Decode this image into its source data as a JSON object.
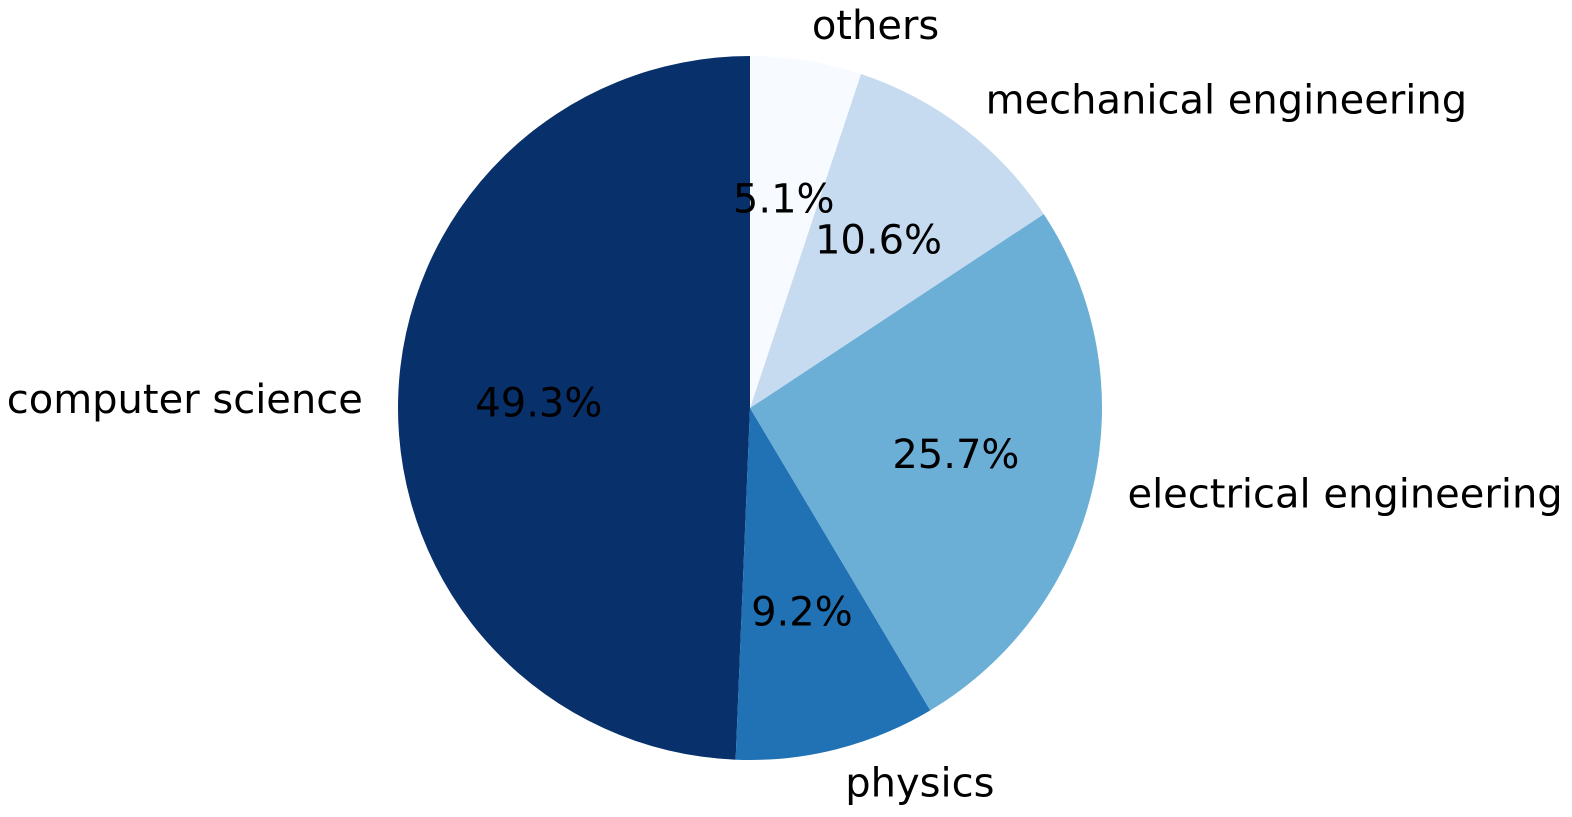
{
  "chart_data": {
    "type": "pie",
    "title": "",
    "start_angle_deg": 90,
    "direction": "counterclockwise",
    "slices": [
      {
        "label": "computer science",
        "pct_label": "49.3%",
        "value": 49.3,
        "color": "#08306b"
      },
      {
        "label": "physics",
        "pct_label": "9.2%",
        "value": 9.2,
        "color": "#2171b5"
      },
      {
        "label": "electrical engineering",
        "pct_label": "25.7%",
        "value": 25.7,
        "color": "#6baed6"
      },
      {
        "label": "mechanical engineering",
        "pct_label": "10.6%",
        "value": 10.6,
        "color": "#c6dbef"
      },
      {
        "label": "others",
        "pct_label": "5.1%",
        "value": 5.1,
        "color": "#f7fbff"
      }
    ]
  }
}
